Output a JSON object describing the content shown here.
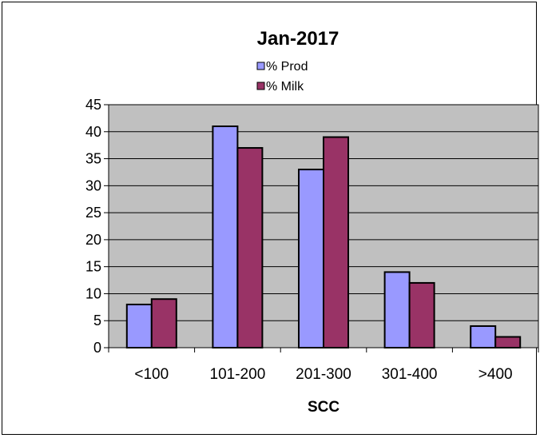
{
  "chart_data": {
    "type": "bar",
    "title": "Jan-2017",
    "xlabel": "SCC",
    "ylabel": "",
    "categories": [
      "<100",
      "101-200",
      "201-300",
      "301-400",
      ">400"
    ],
    "series": [
      {
        "name": "% Prod",
        "values": [
          8,
          41,
          33,
          14,
          4
        ],
        "color": "#9999ff"
      },
      {
        "name": "% Milk",
        "values": [
          9,
          37,
          39,
          12,
          2
        ],
        "color": "#993366"
      }
    ],
    "ylim": [
      0,
      45
    ],
    "yticks": [
      0,
      5,
      10,
      15,
      20,
      25,
      30,
      35,
      40,
      45
    ],
    "grid": true,
    "legend_position": "top-center",
    "plot_background": "#c0c0c0"
  }
}
